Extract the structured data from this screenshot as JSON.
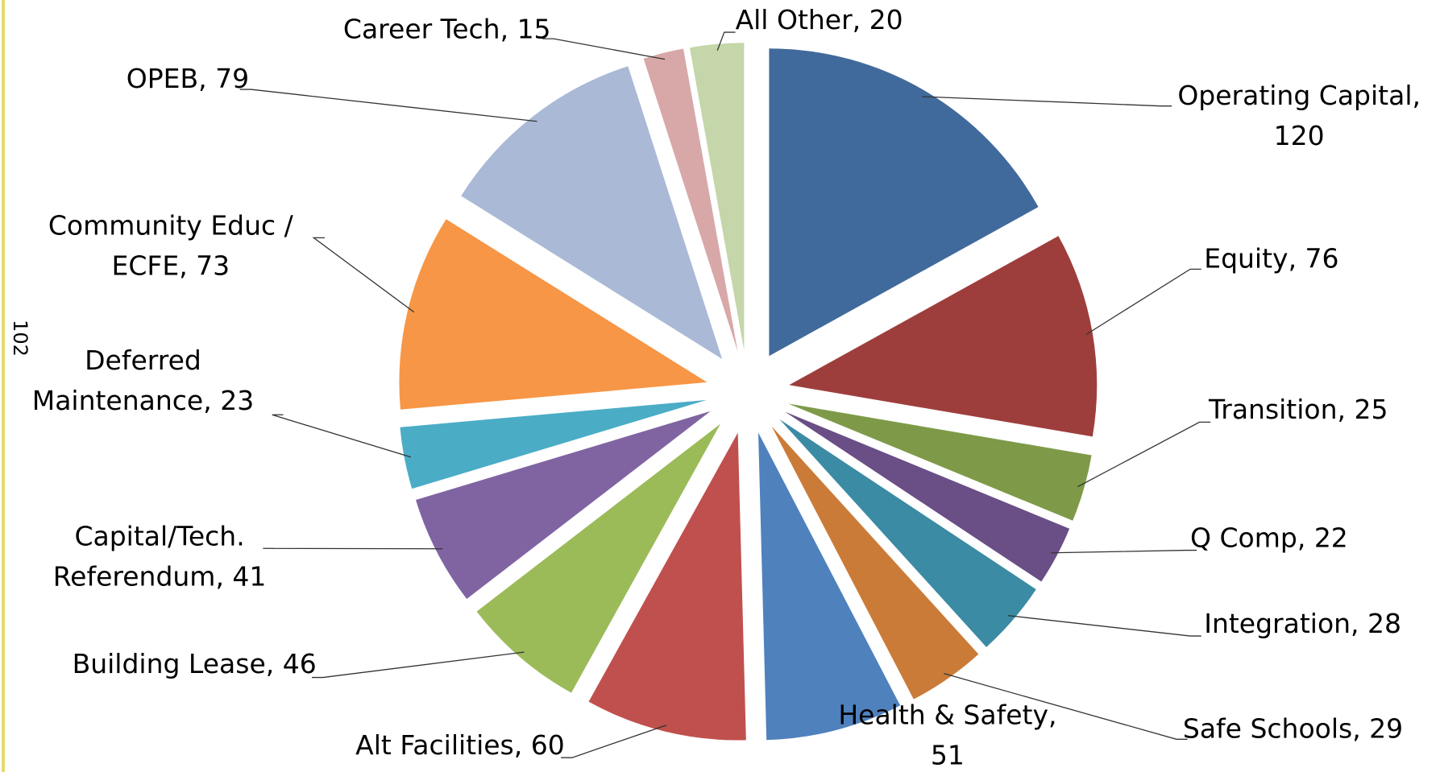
{
  "page_number": "102",
  "chart_data": {
    "type": "pie",
    "values": [
      120,
      76,
      25,
      22,
      28,
      29,
      51,
      60,
      46,
      41,
      23,
      73,
      79,
      15,
      20
    ],
    "value_labels": [
      "Operating Capital, 120",
      "Equity, 76",
      "Transition, 25",
      "Q Comp, 22",
      "Integration, 28",
      "Safe Schools, 29",
      "Health & Safety, 51",
      "Alt Facilities, 60",
      "Building Lease, 46",
      "Capital/Tech. Referendum, 41",
      "Deferred Maintenance, 23",
      "Community Educ / ECFE, 73",
      "OPEB, 79",
      "Career Tech, 15",
      "All Other, 20"
    ],
    "colors": [
      "#416a9c",
      "#9e3e3c",
      "#7e9a48",
      "#6a4e86",
      "#3a8ba3",
      "#cb7b38",
      "#4f81bd",
      "#c0504d",
      "#9bbb59",
      "#8064a2",
      "#4bacc6",
      "#f79646",
      "#aab9d6",
      "#d8a8a8",
      "#c4d6aa"
    ]
  }
}
